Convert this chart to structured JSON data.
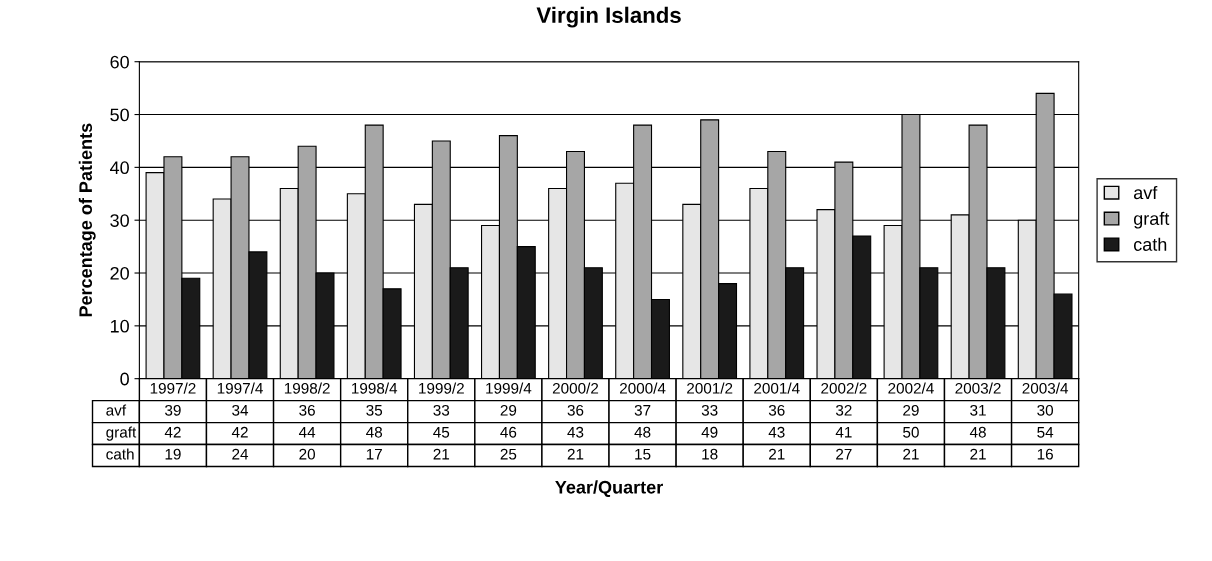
{
  "chart_data": {
    "type": "bar",
    "title": "Virgin Islands",
    "xlabel": "Year/Quarter",
    "ylabel": "Percentage of Patients",
    "categories": [
      "1997/2",
      "1997/4",
      "1998/2",
      "1998/4",
      "1999/2",
      "1999/4",
      "2000/2",
      "2000/4",
      "2001/2",
      "2001/4",
      "2002/2",
      "2002/4",
      "2003/2",
      "2003/4"
    ],
    "series": [
      {
        "name": "avf",
        "color": "#e6e6e6",
        "values": [
          39,
          34,
          36,
          35,
          33,
          29,
          36,
          37,
          33,
          36,
          32,
          29,
          31,
          30
        ]
      },
      {
        "name": "graft",
        "color": "#a6a6a6",
        "values": [
          42,
          42,
          44,
          48,
          45,
          46,
          43,
          48,
          49,
          43,
          41,
          50,
          48,
          54
        ]
      },
      {
        "name": "cath",
        "color": "#1a1a1a",
        "values": [
          19,
          24,
          20,
          17,
          21,
          25,
          21,
          15,
          18,
          21,
          27,
          21,
          21,
          16
        ]
      }
    ],
    "ylim": [
      0,
      60
    ],
    "yticks": [
      0,
      10,
      20,
      30,
      40,
      50,
      60
    ],
    "grid": "y",
    "legend": "right",
    "data_labels": true
  }
}
